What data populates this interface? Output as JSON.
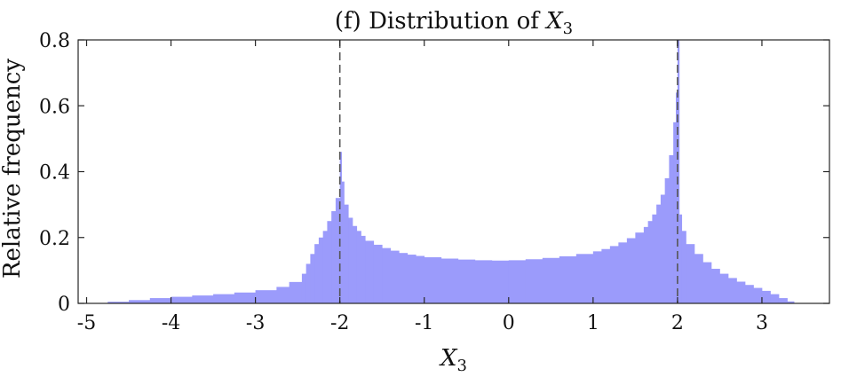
{
  "chart_data": {
    "type": "bar",
    "title_prefix": "(f) Distribution of",
    "title_var": "X",
    "title_sub": "3",
    "xlabel_var": "X",
    "xlabel_sub": "3",
    "ylabel": "Relative frequency",
    "xlim": [
      -5.1,
      3.8
    ],
    "ylim": [
      0,
      0.8
    ],
    "xticks": [
      -5,
      -4,
      -3,
      -2,
      -1,
      0,
      1,
      2,
      3
    ],
    "xtick_labels": [
      "-5",
      "-4",
      "-3",
      "-2",
      "-1",
      "0",
      "1",
      "2",
      "3"
    ],
    "yticks": [
      0,
      0.2,
      0.4,
      0.6,
      0.8
    ],
    "ytick_labels": [
      "0",
      "0.2",
      "0.4",
      "0.6",
      "0.8"
    ],
    "bar_color": "#9b9bfb",
    "vlines": [
      -2,
      2
    ],
    "vline_color": "#555555",
    "grid": false,
    "bins": [
      {
        "x0": -4.75,
        "x1": -4.5,
        "value": 0.005
      },
      {
        "x0": -4.5,
        "x1": -4.25,
        "value": 0.01
      },
      {
        "x0": -4.25,
        "x1": -4.0,
        "value": 0.016
      },
      {
        "x0": -4.0,
        "x1": -3.75,
        "value": 0.02
      },
      {
        "x0": -3.75,
        "x1": -3.5,
        "value": 0.024
      },
      {
        "x0": -3.5,
        "x1": -3.25,
        "value": 0.028
      },
      {
        "x0": -3.25,
        "x1": -3.0,
        "value": 0.033
      },
      {
        "x0": -3.0,
        "x1": -2.75,
        "value": 0.04
      },
      {
        "x0": -2.75,
        "x1": -2.6,
        "value": 0.05
      },
      {
        "x0": -2.6,
        "x1": -2.45,
        "value": 0.065
      },
      {
        "x0": -2.45,
        "x1": -2.4,
        "value": 0.09
      },
      {
        "x0": -2.4,
        "x1": -2.35,
        "value": 0.12
      },
      {
        "x0": -2.35,
        "x1": -2.3,
        "value": 0.15
      },
      {
        "x0": -2.3,
        "x1": -2.25,
        "value": 0.18
      },
      {
        "x0": -2.25,
        "x1": -2.2,
        "value": 0.2
      },
      {
        "x0": -2.2,
        "x1": -2.15,
        "value": 0.22
      },
      {
        "x0": -2.15,
        "x1": -2.1,
        "value": 0.25
      },
      {
        "x0": -2.1,
        "x1": -2.05,
        "value": 0.28
      },
      {
        "x0": -2.05,
        "x1": -2.0,
        "value": 0.32
      },
      {
        "x0": -2.0,
        "x1": -1.98,
        "value": 0.46
      },
      {
        "x0": -1.98,
        "x1": -1.95,
        "value": 0.37
      },
      {
        "x0": -1.95,
        "x1": -1.9,
        "value": 0.3
      },
      {
        "x0": -1.9,
        "x1": -1.85,
        "value": 0.26
      },
      {
        "x0": -1.85,
        "x1": -1.8,
        "value": 0.235
      },
      {
        "x0": -1.8,
        "x1": -1.75,
        "value": 0.22
      },
      {
        "x0": -1.75,
        "x1": -1.7,
        "value": 0.205
      },
      {
        "x0": -1.7,
        "x1": -1.6,
        "value": 0.19
      },
      {
        "x0": -1.6,
        "x1": -1.5,
        "value": 0.178
      },
      {
        "x0": -1.5,
        "x1": -1.4,
        "value": 0.168
      },
      {
        "x0": -1.4,
        "x1": -1.3,
        "value": 0.16
      },
      {
        "x0": -1.3,
        "x1": -1.2,
        "value": 0.153
      },
      {
        "x0": -1.2,
        "x1": -1.1,
        "value": 0.148
      },
      {
        "x0": -1.1,
        "x1": -1.0,
        "value": 0.144
      },
      {
        "x0": -1.0,
        "x1": -0.8,
        "value": 0.14
      },
      {
        "x0": -0.8,
        "x1": -0.6,
        "value": 0.136
      },
      {
        "x0": -0.6,
        "x1": -0.4,
        "value": 0.133
      },
      {
        "x0": -0.4,
        "x1": -0.2,
        "value": 0.131
      },
      {
        "x0": -0.2,
        "x1": 0.0,
        "value": 0.13
      },
      {
        "x0": 0.0,
        "x1": 0.2,
        "value": 0.131
      },
      {
        "x0": 0.2,
        "x1": 0.4,
        "value": 0.134
      },
      {
        "x0": 0.4,
        "x1": 0.6,
        "value": 0.138
      },
      {
        "x0": 0.6,
        "x1": 0.8,
        "value": 0.143
      },
      {
        "x0": 0.8,
        "x1": 1.0,
        "value": 0.15
      },
      {
        "x0": 1.0,
        "x1": 1.1,
        "value": 0.158
      },
      {
        "x0": 1.1,
        "x1": 1.2,
        "value": 0.165
      },
      {
        "x0": 1.2,
        "x1": 1.3,
        "value": 0.174
      },
      {
        "x0": 1.3,
        "x1": 1.4,
        "value": 0.185
      },
      {
        "x0": 1.4,
        "x1": 1.5,
        "value": 0.198
      },
      {
        "x0": 1.5,
        "x1": 1.6,
        "value": 0.215
      },
      {
        "x0": 1.6,
        "x1": 1.65,
        "value": 0.232
      },
      {
        "x0": 1.65,
        "x1": 1.7,
        "value": 0.25
      },
      {
        "x0": 1.7,
        "x1": 1.75,
        "value": 0.27
      },
      {
        "x0": 1.75,
        "x1": 1.8,
        "value": 0.3
      },
      {
        "x0": 1.8,
        "x1": 1.85,
        "value": 0.33
      },
      {
        "x0": 1.85,
        "x1": 1.9,
        "value": 0.38
      },
      {
        "x0": 1.9,
        "x1": 1.95,
        "value": 0.45
      },
      {
        "x0": 1.95,
        "x1": 1.98,
        "value": 0.55
      },
      {
        "x0": 1.98,
        "x1": 2.0,
        "value": 0.64
      },
      {
        "x0": 2.0,
        "x1": 2.02,
        "value": 0.8
      },
      {
        "x0": 2.02,
        "x1": 2.05,
        "value": 0.27
      },
      {
        "x0": 2.05,
        "x1": 2.1,
        "value": 0.22
      },
      {
        "x0": 2.1,
        "x1": 2.2,
        "value": 0.18
      },
      {
        "x0": 2.2,
        "x1": 2.3,
        "value": 0.15
      },
      {
        "x0": 2.3,
        "x1": 2.4,
        "value": 0.125
      },
      {
        "x0": 2.4,
        "x1": 2.5,
        "value": 0.105
      },
      {
        "x0": 2.5,
        "x1": 2.6,
        "value": 0.09
      },
      {
        "x0": 2.6,
        "x1": 2.7,
        "value": 0.077
      },
      {
        "x0": 2.7,
        "x1": 2.8,
        "value": 0.066
      },
      {
        "x0": 2.8,
        "x1": 2.9,
        "value": 0.056
      },
      {
        "x0": 2.9,
        "x1": 3.0,
        "value": 0.047
      },
      {
        "x0": 3.0,
        "x1": 3.1,
        "value": 0.038
      },
      {
        "x0": 3.1,
        "x1": 3.2,
        "value": 0.028
      },
      {
        "x0": 3.2,
        "x1": 3.3,
        "value": 0.016
      },
      {
        "x0": 3.3,
        "x1": 3.38,
        "value": 0.006
      }
    ]
  }
}
